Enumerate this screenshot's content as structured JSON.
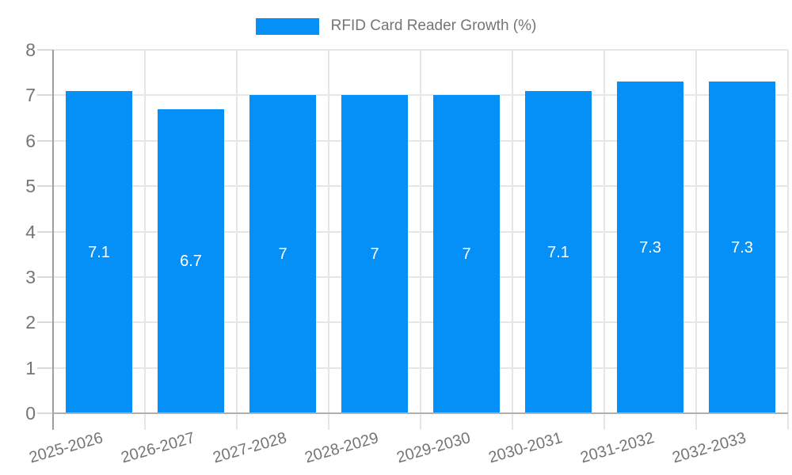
{
  "legend": {
    "label": "RFID Card Reader Growth (%)",
    "swatch_color": "#0590f8",
    "position": "top-center"
  },
  "chart_data": {
    "type": "bar",
    "title": "RFID Card Reader Growth (%)",
    "categories": [
      "2025-2026",
      "2026-2027",
      "2027-2028",
      "2028-2029",
      "2029-2030",
      "2030-2031",
      "2031-2032",
      "2032-2033"
    ],
    "series": [
      {
        "name": "RFID Card Reader Growth (%)",
        "values": [
          7.1,
          6.7,
          7,
          7,
          7,
          7.1,
          7.3,
          7.3
        ]
      }
    ],
    "data_labels": [
      "7.1",
      "6.7",
      "7",
      "7",
      "7",
      "7.1",
      "7.3",
      "7.3"
    ],
    "xlabel": "",
    "ylabel": "",
    "ylim": [
      0,
      8
    ],
    "yticks": [
      0,
      1,
      2,
      3,
      4,
      5,
      6,
      7,
      8
    ],
    "grid": true,
    "legend_position": "top",
    "bar_color": "#0590f8",
    "annotation_color": "#ffffff",
    "axis_text_color": "#757575",
    "gridline_color": "#e6e6e6",
    "axis_line_color": "#9e9e9e",
    "background_color": "#ffffff"
  }
}
